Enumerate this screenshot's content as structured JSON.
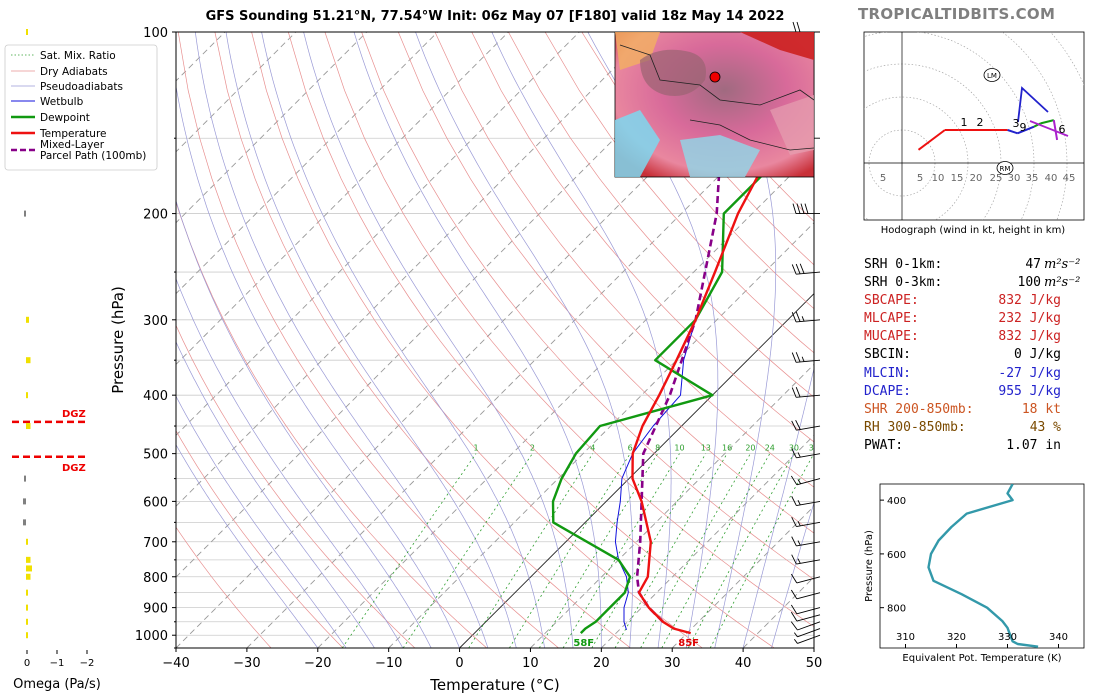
{
  "header": {
    "title": "GFS Sounding 51.21°N, 77.54°W Init: 06z May 07 [F180] valid 18z May 14 2022",
    "brand": "TROPICALTIDBITS.COM"
  },
  "colors": {
    "temperature": "#ee1111",
    "dewpoint": "#119911",
    "wetbulb": "#1111dd",
    "parcel": "#880088",
    "dry_adiabat": "#e89090",
    "pseudoadiabat": "#9a9ad6",
    "mixing_ratio": "#2e9e2e",
    "isotherm": "#555555",
    "omega_yellow": "#f0e000",
    "omega_gray": "#808080",
    "dgz": "#ee0000",
    "hodo_lower": "#ee1111",
    "hodo_mid": "#2222cc",
    "hodo_upper": "#119911",
    "hodo_top": "#aa22cc",
    "theta_line": "#3399aa"
  },
  "chart_data": [
    {
      "type": "line",
      "name": "skew-t",
      "ylabel": "Pressure (hPa)",
      "xlabel": "Temperature (°C)",
      "xlim": [
        -40,
        50
      ],
      "ylim": [
        1050,
        100
      ],
      "yscale": "log",
      "skew_deg_per_log": 45,
      "y_ticks": [
        100,
        200,
        300,
        400,
        500,
        600,
        700,
        800,
        900,
        1000
      ],
      "x_ticks": [
        -40,
        -30,
        -20,
        -10,
        0,
        10,
        20,
        30,
        40,
        50
      ],
      "legend": {
        "position": "top-left",
        "entries": [
          "Sat. Mix. Ratio",
          "Dry Adiabats",
          "Pseudoadiabats",
          "Wetbulb",
          "Dewpoint",
          "Temperature",
          "Mixed-Layer\nParcel Path (100mb)"
        ]
      },
      "mixing_ratio_labels": [
        "1",
        "2",
        "4",
        "6",
        "8",
        "10",
        "13",
        "16",
        "20",
        "24",
        "30",
        "36"
      ],
      "temperature_profile": {
        "pressure": [
          992,
          975,
          950,
          900,
          850,
          800,
          700,
          600,
          550,
          500,
          450,
          400,
          350,
          300,
          250,
          200,
          150,
          125,
          100
        ],
        "temp": [
          30.5,
          27.5,
          25,
          21,
          17.5,
          16.5,
          12,
          5,
          0.5,
          -3,
          -5.5,
          -7.5,
          -10,
          -13,
          -17,
          -22,
          -27,
          -30,
          -30
        ]
      },
      "dewpoint_profile": {
        "pressure": [
          992,
          975,
          950,
          900,
          850,
          800,
          750,
          700,
          650,
          600,
          550,
          500,
          450,
          400,
          350,
          300,
          250,
          200,
          150,
          100
        ],
        "dewp": [
          15,
          15,
          15.5,
          15.5,
          15.5,
          14,
          10,
          3,
          -4.5,
          -7.5,
          -9.5,
          -11,
          -11.5,
          0,
          -13,
          -13,
          -16,
          -24,
          -24,
          -25
        ]
      },
      "wetbulb_profile": {
        "pressure": [
          980,
          950,
          900,
          850,
          800,
          750,
          700,
          650,
          600,
          550,
          500,
          450,
          400,
          350,
          300
        ],
        "temp": [
          21,
          19.5,
          17.5,
          16,
          13.5,
          10,
          7,
          4.5,
          2,
          -1,
          -3,
          -4,
          -4.5,
          -9,
          -13
        ]
      },
      "parcel_profile": {
        "pressure": [
          950,
          900,
          850,
          800,
          700,
          600,
          500,
          400,
          300,
          200,
          150,
          100
        ],
        "temp": [
          25,
          21,
          17.5,
          15,
          10.5,
          5,
          -1.5,
          -6,
          -13,
          -25,
          -35,
          -42
        ]
      },
      "surface_labels": {
        "temperature": "85F",
        "dewpoint": "58F"
      },
      "dgz_label": "DGZ",
      "dgz_pressures": [
        443,
        506
      ],
      "wind_barbs": {
        "pressure": [
          1000,
          975,
          950,
          925,
          900,
          850,
          800,
          750,
          700,
          650,
          600,
          550,
          500,
          450,
          400,
          350,
          300,
          250,
          200,
          150,
          100
        ],
        "speed_kt": [
          5,
          5,
          10,
          10,
          10,
          10,
          10,
          15,
          15,
          15,
          15,
          15,
          15,
          20,
          20,
          25,
          25,
          30,
          40,
          45,
          20
        ],
        "direction_deg": [
          250,
          250,
          250,
          255,
          255,
          255,
          255,
          260,
          260,
          260,
          260,
          255,
          260,
          260,
          265,
          265,
          265,
          265,
          270,
          270,
          270
        ]
      }
    },
    {
      "type": "bar",
      "name": "omega",
      "xlabel": "Omega (Pa/s)",
      "x_ticks": [
        "0",
        "−1",
        "−2"
      ],
      "pressure": [
        1000,
        950,
        900,
        850,
        800,
        775,
        750,
        700,
        650,
        600,
        550,
        450,
        400,
        350,
        300,
        200,
        100
      ],
      "values": [
        -0.05,
        -0.05,
        -0.05,
        -0.05,
        -0.15,
        -0.2,
        -0.15,
        -0.05,
        0.1,
        0.1,
        0.05,
        -0.15,
        -0.05,
        -0.15,
        -0.1,
        0.05,
        -0.05
      ],
      "color_rule": "yellow when negative, gray when positive"
    },
    {
      "type": "line",
      "name": "hodograph",
      "xlabel": "Hodograph (wind in kt, height in km)",
      "ring_labels": [
        "5",
        "5",
        "10",
        "15",
        "20",
        "25",
        "30",
        "35",
        "40",
        "45"
      ],
      "point_labels": [
        "1",
        "2",
        "3",
        "9",
        "6"
      ],
      "marker_labels": [
        "LM",
        "RM"
      ],
      "u_kt": [
        5,
        13,
        17,
        32,
        35,
        40,
        42,
        46,
        47
      ],
      "v_kt": [
        4,
        10,
        10,
        10,
        9,
        11,
        12,
        13,
        7
      ]
    },
    {
      "type": "line",
      "name": "theta-e",
      "xlabel": "Equivalent Pot. Temperature (K)",
      "ylabel": "Pressure (hPa)",
      "xlim": [
        305,
        345
      ],
      "ylim": [
        950,
        340
      ],
      "x_ticks": [
        310,
        320,
        330,
        340
      ],
      "y_ticks": [
        400,
        600,
        800
      ],
      "pressure": [
        945,
        935,
        925,
        900,
        875,
        850,
        800,
        750,
        700,
        650,
        600,
        550,
        500,
        450,
        400,
        375,
        340
      ],
      "theta_e": [
        336,
        332,
        331,
        330.5,
        330,
        329,
        326,
        321,
        315.5,
        314.5,
        315,
        316.5,
        319,
        322,
        331,
        330,
        331
      ]
    }
  ],
  "indices": [
    {
      "label": "SRH 0-1km:",
      "value": "47",
      "unit": "m²s⁻²",
      "color": "#000000"
    },
    {
      "label": "SRH 0-3km:",
      "value": "100",
      "unit": "m²s⁻²",
      "color": "#000000"
    },
    {
      "label": "SBCAPE:",
      "value": "832 J/kg",
      "unit": "",
      "color": "#cc2222"
    },
    {
      "label": "MLCAPE:",
      "value": "232 J/kg",
      "unit": "",
      "color": "#cc2222"
    },
    {
      "label": "MUCAPE:",
      "value": "832 J/kg",
      "unit": "",
      "color": "#cc2222"
    },
    {
      "label": "SBCIN:",
      "value": "0 J/kg",
      "unit": "",
      "color": "#000000"
    },
    {
      "label": "MLCIN:",
      "value": "-27 J/kg",
      "unit": "",
      "color": "#2222cc"
    },
    {
      "label": "DCAPE:",
      "value": "955 J/kg",
      "unit": "",
      "color": "#2222cc"
    },
    {
      "label": "SHR 200-850mb:",
      "value": "18 kt",
      "unit": "",
      "color": "#cc5522"
    },
    {
      "label": "RH 300-850mb:",
      "value": "43 %",
      "unit": "",
      "color": "#7a4a00"
    },
    {
      "label": "PWAT:",
      "value": "1.07 in",
      "unit": "",
      "color": "#000000"
    }
  ]
}
